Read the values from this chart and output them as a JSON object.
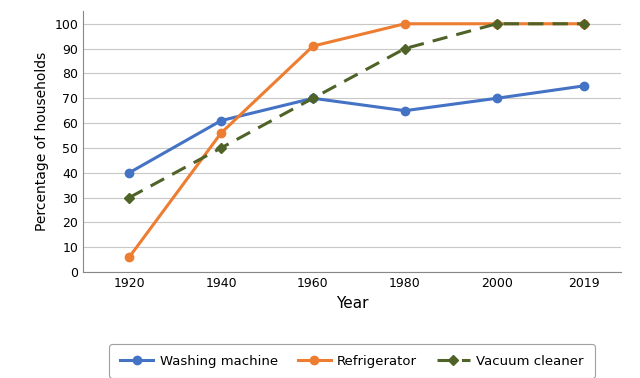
{
  "years": [
    1920,
    1940,
    1960,
    1980,
    2000,
    2019
  ],
  "washing_machine": [
    40,
    61,
    70,
    65,
    70,
    75
  ],
  "refrigerator": [
    6,
    56,
    91,
    100,
    100,
    100
  ],
  "vacuum_cleaner": [
    30,
    50,
    70,
    90,
    100,
    100
  ],
  "washing_machine_color": "#4472C4",
  "refrigerator_color": "#ED7D31",
  "vacuum_cleaner_color": "#4F6228",
  "ylabel": "Percentage of households",
  "xlabel": "Year",
  "ylim": [
    0,
    105
  ],
  "yticks": [
    0,
    10,
    20,
    30,
    40,
    50,
    60,
    70,
    80,
    90,
    100
  ],
  "xticks": [
    1920,
    1940,
    1960,
    1980,
    2000,
    2019
  ],
  "legend_washing": "Washing machine",
  "legend_refrigerator": "Refrigerator",
  "legend_vacuum": "Vacuum cleaner",
  "background_color": "#ffffff",
  "grid_color": "#c8c8c8"
}
